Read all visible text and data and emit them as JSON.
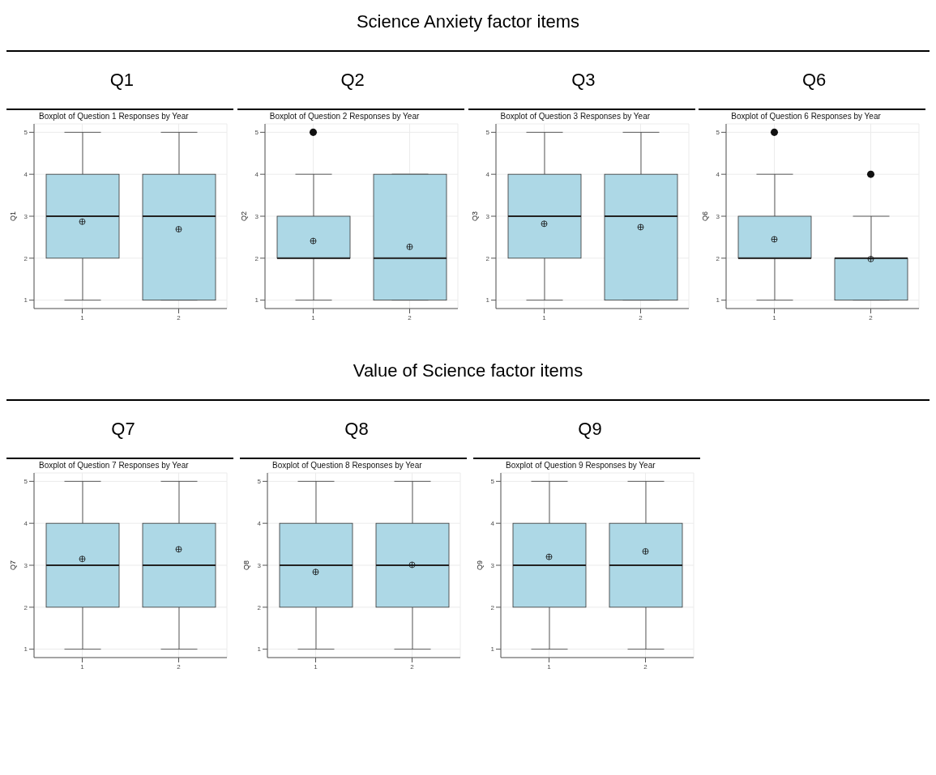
{
  "chart_data": [
    {
      "type": "box",
      "annotations": [
        "Science Anxiety factor items"
      ],
      "subtitle": "Q1",
      "title": "Boxplot of Question 1 Responses by Year",
      "ylabel": "Q1",
      "categories": [
        "1",
        "2"
      ],
      "color": "#add8e6",
      "ylim": [
        0.8,
        5.2
      ],
      "yticks": [
        1,
        2,
        3,
        4,
        5
      ],
      "grid": true,
      "boxes": [
        {
          "low": 1,
          "q1": 2,
          "median": 3,
          "q3": 4,
          "high": 5,
          "mean": 2.87
        },
        {
          "low": 1,
          "q1": 1,
          "median": 3,
          "q3": 4,
          "high": 5,
          "mean": 2.69
        }
      ]
    },
    {
      "type": "box",
      "subtitle": "Q2",
      "title": "Boxplot of Question 2 Responses by Year",
      "ylabel": "Q2",
      "categories": [
        "1",
        "2"
      ],
      "color": "#add8e6",
      "ylim": [
        0.8,
        5.2
      ],
      "yticks": [
        1,
        2,
        3,
        4,
        5
      ],
      "grid": true,
      "boxes": [
        {
          "low": 1,
          "q1": 2,
          "median": 2,
          "q3": 3,
          "high": 4,
          "mean": 2.41,
          "outliers": [
            5
          ]
        },
        {
          "low": 1,
          "q1": 1,
          "median": 2,
          "q3": 4,
          "high": 4,
          "mean": 2.27
        }
      ]
    },
    {
      "type": "box",
      "subtitle": "Q3",
      "title": "Boxplot of Question 3 Responses by Year",
      "ylabel": "Q3",
      "categories": [
        "1",
        "2"
      ],
      "color": "#add8e6",
      "ylim": [
        0.8,
        5.2
      ],
      "yticks": [
        1,
        2,
        3,
        4,
        5
      ],
      "grid": true,
      "boxes": [
        {
          "low": 1,
          "q1": 2,
          "median": 3,
          "q3": 4,
          "high": 5,
          "mean": 2.82
        },
        {
          "low": 1,
          "q1": 1,
          "median": 3,
          "q3": 4,
          "high": 5,
          "mean": 2.74
        }
      ]
    },
    {
      "type": "box",
      "subtitle": "Q6",
      "title": "Boxplot of Question 6 Responses by Year",
      "ylabel": "Q6",
      "categories": [
        "1",
        "2"
      ],
      "color": "#add8e6",
      "ylim": [
        0.8,
        5.2
      ],
      "yticks": [
        1,
        2,
        3,
        4,
        5
      ],
      "grid": true,
      "boxes": [
        {
          "low": 1,
          "q1": 2,
          "median": 2,
          "q3": 3,
          "high": 4,
          "mean": 2.45,
          "outliers": [
            5
          ]
        },
        {
          "low": 1,
          "q1": 1,
          "median": 2,
          "q3": 2,
          "high": 3,
          "mean": 1.98,
          "outliers": [
            4
          ]
        }
      ]
    },
    {
      "type": "box",
      "annotations": [
        "Value of Science factor items"
      ],
      "subtitle": "Q7",
      "title": "Boxplot of Question 7 Responses by Year",
      "ylabel": "Q7",
      "categories": [
        "1",
        "2"
      ],
      "color": "#add8e6",
      "ylim": [
        0.8,
        5.2
      ],
      "yticks": [
        1,
        2,
        3,
        4,
        5
      ],
      "grid": true,
      "boxes": [
        {
          "low": 1,
          "q1": 2,
          "median": 3,
          "q3": 4,
          "high": 5,
          "mean": 3.15
        },
        {
          "low": 1,
          "q1": 2,
          "median": 3,
          "q3": 4,
          "high": 5,
          "mean": 3.38
        }
      ]
    },
    {
      "type": "box",
      "subtitle": "Q8",
      "title": "Boxplot of Question 8 Responses by Year",
      "ylabel": "Q8",
      "categories": [
        "1",
        "2"
      ],
      "color": "#add8e6",
      "ylim": [
        0.8,
        5.2
      ],
      "yticks": [
        1,
        2,
        3,
        4,
        5
      ],
      "grid": true,
      "boxes": [
        {
          "low": 1,
          "q1": 2,
          "median": 3,
          "q3": 4,
          "high": 5,
          "mean": 2.84
        },
        {
          "low": 1,
          "q1": 2,
          "median": 3,
          "q3": 4,
          "high": 5,
          "mean": 3.01
        }
      ]
    },
    {
      "type": "box",
      "subtitle": "Q9",
      "title": "Boxplot of Question 9 Responses by Year",
      "ylabel": "Q9",
      "categories": [
        "1",
        "2"
      ],
      "color": "#add8e6",
      "ylim": [
        0.8,
        5.2
      ],
      "yticks": [
        1,
        2,
        3,
        4,
        5
      ],
      "grid": true,
      "boxes": [
        {
          "low": 1,
          "q1": 2,
          "median": 3,
          "q3": 4,
          "high": 5,
          "mean": 3.2
        },
        {
          "low": 1,
          "q1": 2,
          "median": 3,
          "q3": 4,
          "high": 5,
          "mean": 3.33
        }
      ]
    }
  ]
}
